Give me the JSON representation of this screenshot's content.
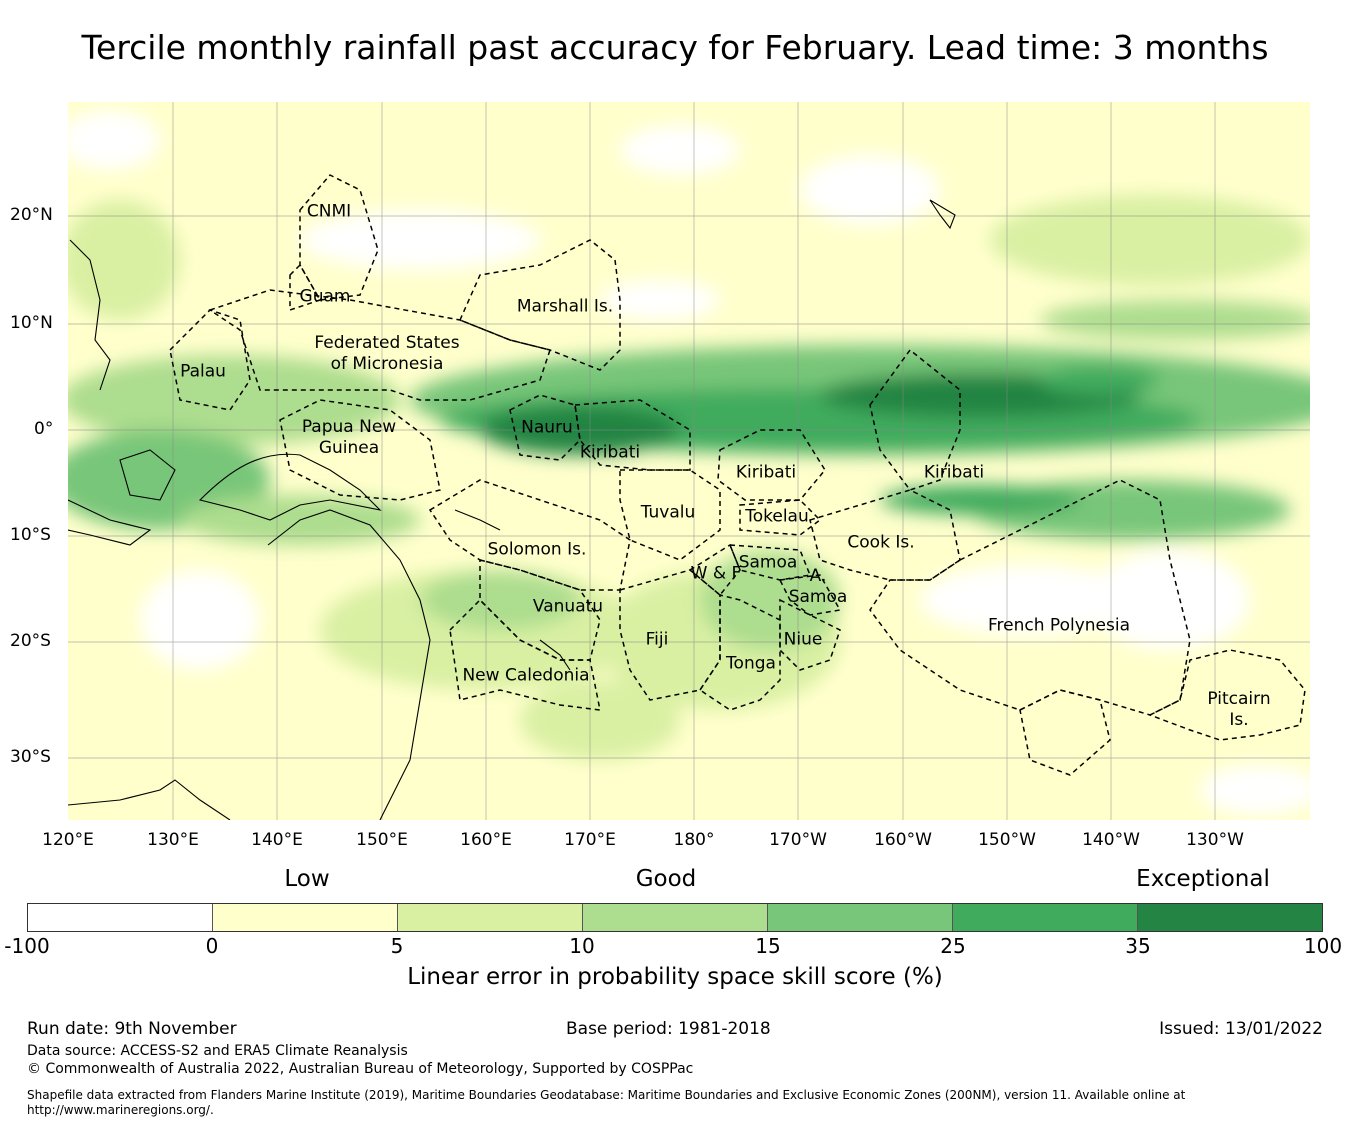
{
  "title": "Tercile monthly rainfall past accuracy for February. Lead time: 3 months",
  "lat_labels": [
    "20°N",
    "10°N",
    "0°",
    "10°S",
    "20°S",
    "30°S"
  ],
  "lon_labels": [
    "120°E",
    "130°E",
    "140°E",
    "150°E",
    "160°E",
    "170°E",
    "180°",
    "170°W",
    "160°W",
    "150°W",
    "140°W",
    "130°W"
  ],
  "regions": [
    "CNMI",
    "Guam",
    "Marshall Is.",
    "Palau",
    "Federated States\nof Micronesia",
    "Nauru",
    "Papua New\nGuinea",
    "Kiribati",
    "Kiribati",
    "Kiribati",
    "Tuvalu",
    "Tokelau",
    "Solomon Is.",
    "Samoa",
    "W & F",
    "A.\nSamoa",
    "Cook Is.",
    "Vanuatu",
    "Fiji",
    "Niue",
    "Tonga",
    "French Polynesia",
    "New Caledonia",
    "Pitcairn\nIs."
  ],
  "legend": {
    "categories": [
      "Low",
      "Good",
      "Exceptional"
    ],
    "ticks": [
      "-100",
      "0",
      "5",
      "10",
      "15",
      "25",
      "35",
      "100"
    ],
    "colors": [
      "#ffffff",
      "#ffffcc",
      "#d9f0a3",
      "#addd8e",
      "#78c679",
      "#41ab5d",
      "#238443"
    ],
    "title": "Linear error in probability space skill score (%)"
  },
  "footer": {
    "run_date": "Run date: 9th November",
    "base_period": "Base period: 1981-2018",
    "issued": "Issued: 13/01/2022",
    "data_source": "Data source: ACCESS-S2 and ERA5 Climate Reanalysis",
    "copyright": "© Commonwealth of Australia 2022, Australian Bureau of Meteorology, Supported by COSPPac",
    "shapefile": "Shapefile data extracted from Flanders Marine Institute (2019), Maritime Boundaries Geodatabase: Maritime Boundaries and Exclusive Economic Zones (200NM), version 11. Available online at http://www.marineregions.org/."
  }
}
